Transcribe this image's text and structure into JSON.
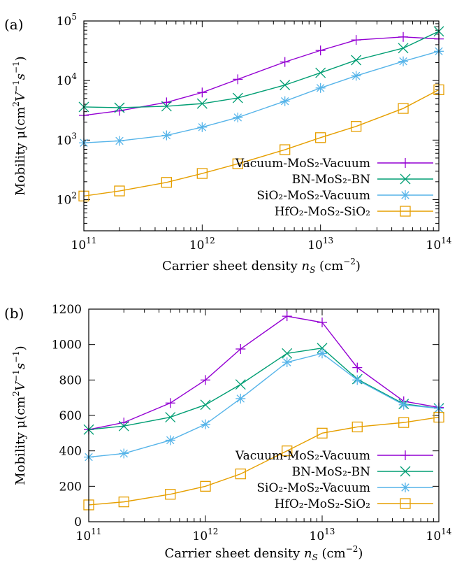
{
  "chart_data": [
    {
      "type": "line",
      "panel_label": "(a)",
      "xlabel": "Carrier sheet density",
      "xlabel_symbol": "n",
      "xlabel_sub": "S",
      "xlabel_unit": "(cm",
      "xlabel_unit_sup": "−2",
      "xlabel_unit_close": ")",
      "ylabel_text": "Mobility μ(cm",
      "ylabel_sup1": "2",
      "ylabel_mid": "V",
      "ylabel_sup2": "−1",
      "ylabel_s": "s",
      "ylabel_sup3": "−1",
      "ylabel_close": ")",
      "x_scale": "log",
      "y_scale": "log",
      "xlim": [
        100000000000.0,
        100000000000000.0
      ],
      "ylim": [
        30,
        100000
      ],
      "x_ticks": [
        100000000000.0,
        1000000000000.0,
        10000000000000.0,
        100000000000000.0
      ],
      "x_tick_labels": [
        {
          "base": "10",
          "exp": "11"
        },
        {
          "base": "10",
          "exp": "12"
        },
        {
          "base": "10",
          "exp": "13"
        },
        {
          "base": "10",
          "exp": "14"
        }
      ],
      "y_ticks": [
        100,
        1000,
        10000,
        100000
      ],
      "y_tick_labels": [
        {
          "base": "10",
          "exp": "2"
        },
        {
          "base": "10",
          "exp": "3"
        },
        {
          "base": "10",
          "exp": "4"
        },
        {
          "base": "10",
          "exp": "5"
        }
      ],
      "legend_position": "bottom-right",
      "x": [
        100000000000.0,
        200000000000.0,
        500000000000.0,
        1000000000000.0,
        2000000000000.0,
        5000000000000.0,
        10000000000000.0,
        20000000000000.0,
        50000000000000.0,
        100000000000000.0
      ],
      "series": [
        {
          "name": "Vacuum-MoS₂-Vacuum",
          "color": "#9400d3",
          "marker": "plus",
          "values": [
            2600,
            3100,
            4300,
            6300,
            10500,
            20500,
            32000,
            48000,
            54000,
            50000
          ]
        },
        {
          "name": "BN-MoS₂-BN",
          "color": "#009e73",
          "marker": "x",
          "values": [
            3600,
            3500,
            3700,
            4100,
            5100,
            8400,
            13500,
            22000,
            35000,
            67000
          ]
        },
        {
          "name": "SiO₂-MoS₂-Vacuum",
          "color": "#56b4e9",
          "marker": "star",
          "values": [
            900,
            970,
            1200,
            1650,
            2400,
            4500,
            7500,
            12000,
            21000,
            31000
          ]
        },
        {
          "name": "HfO₂-MoS₂-SiO₂",
          "color": "#e69f00",
          "marker": "square",
          "values": [
            115,
            140,
            195,
            275,
            400,
            690,
            1100,
            1700,
            3400,
            7000
          ]
        }
      ]
    },
    {
      "type": "line",
      "panel_label": "(b)",
      "xlabel": "Carrier sheet density",
      "xlabel_symbol": "n",
      "xlabel_sub": "S",
      "xlabel_unit": "(cm",
      "xlabel_unit_sup": "−2",
      "xlabel_unit_close": ")",
      "ylabel_text": "Mobility μ(cm",
      "ylabel_sup1": "2",
      "ylabel_mid": "V",
      "ylabel_sup2": "−1",
      "ylabel_s": "s",
      "ylabel_sup3": "−1",
      "ylabel_close": ")",
      "x_scale": "log",
      "y_scale": "linear",
      "xlim": [
        100000000000.0,
        100000000000000.0
      ],
      "ylim": [
        0,
        1200
      ],
      "x_ticks": [
        100000000000.0,
        1000000000000.0,
        10000000000000.0,
        100000000000000.0
      ],
      "x_tick_labels": [
        {
          "base": "10",
          "exp": "11"
        },
        {
          "base": "10",
          "exp": "12"
        },
        {
          "base": "10",
          "exp": "13"
        },
        {
          "base": "10",
          "exp": "14"
        }
      ],
      "y_ticks": [
        0,
        200,
        400,
        600,
        800,
        1000,
        1200
      ],
      "y_tick_labels": [
        "0",
        "200",
        "400",
        "600",
        "800",
        "1000",
        "1200"
      ],
      "legend_position": "bottom-right",
      "x": [
        100000000000.0,
        200000000000.0,
        500000000000.0,
        1000000000000.0,
        2000000000000.0,
        5000000000000.0,
        10000000000000.0,
        20000000000000.0,
        50000000000000.0,
        100000000000000.0
      ],
      "series": [
        {
          "name": "Vacuum-MoS₂-Vacuum",
          "color": "#9400d3",
          "marker": "plus",
          "values": [
            520,
            560,
            670,
            800,
            975,
            1160,
            1125,
            870,
            680,
            645
          ]
        },
        {
          "name": "BN-MoS₂-BN",
          "color": "#009e73",
          "marker": "x",
          "values": [
            520,
            540,
            590,
            660,
            775,
            950,
            980,
            805,
            665,
            640
          ]
        },
        {
          "name": "SiO₂-MoS₂-Vacuum",
          "color": "#56b4e9",
          "marker": "star",
          "values": [
            365,
            385,
            460,
            550,
            695,
            900,
            950,
            800,
            660,
            640
          ]
        },
        {
          "name": "HfO₂-MoS₂-SiO₂",
          "color": "#e69f00",
          "marker": "square",
          "values": [
            95,
            112,
            155,
            200,
            270,
            400,
            500,
            535,
            560,
            590
          ]
        }
      ]
    }
  ]
}
